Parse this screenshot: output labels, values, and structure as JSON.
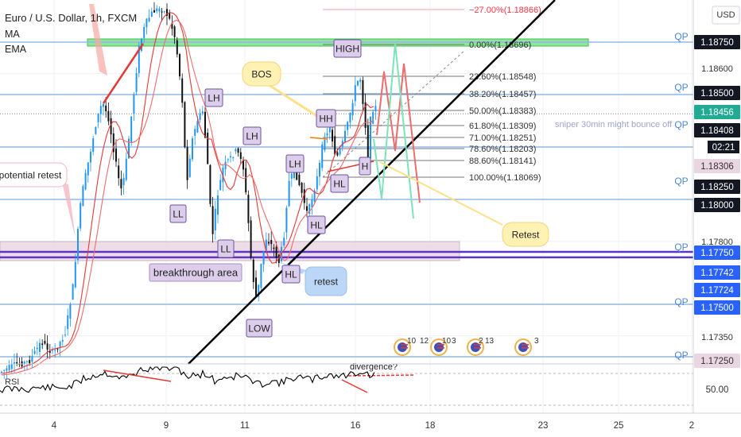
{
  "header": {
    "title": "Euro / U.S. Dollar, 1h, FXCM",
    "indicators": [
      "MA",
      "EMA"
    ],
    "currency": "USD",
    "countdown": "02:21"
  },
  "colors": {
    "up": "#2196f3",
    "down": "#111111",
    "trendline": "#000000",
    "fib": "#555555",
    "level_blue": "#90b8e6",
    "level_purple": "#5b35c8",
    "zone_green": "#7ee08a",
    "zone_pink": "#e8d2de",
    "badge_dark": "#131722",
    "badge_green": "#22ab94",
    "badge_blue": "#2962ff",
    "badge_pink": "#ead6e1"
  },
  "chart_data": {
    "type": "candlestick",
    "symbol": "EURUSD",
    "timeframe": "1h",
    "ylim": [
      1.1718,
      1.19
    ],
    "x_ticks": [
      "4",
      "9",
      "11",
      "16",
      "18",
      "23",
      "25",
      "2"
    ],
    "y_ticks": [
      "1.18600",
      "1.18000",
      "1.17800",
      "1.17350"
    ],
    "price_badges": [
      {
        "value": "1.18750",
        "style": "dark",
        "qp": true
      },
      {
        "value": "1.18500",
        "style": "dark",
        "qp": true
      },
      {
        "value": "1.18456",
        "style": "green",
        "qp": false
      },
      {
        "value": "1.18408",
        "style": "dark",
        "qp": true
      },
      {
        "value": "1.18306",
        "style": "pink",
        "qp": false
      },
      {
        "value": "1.18250",
        "style": "dark",
        "qp": true
      },
      {
        "value": "1.18000",
        "style": "dark",
        "qp": false
      },
      {
        "value": "1.17750",
        "style": "blue",
        "qp": true
      },
      {
        "value": "1.17742",
        "style": "blue",
        "qp": false
      },
      {
        "value": "1.17724",
        "style": "blue",
        "qp": false
      },
      {
        "value": "1.17500",
        "style": "blue",
        "qp": true
      },
      {
        "value": "1.17250",
        "style": "pink",
        "qp": true
      }
    ],
    "qp_label": "QP",
    "fib_levels": [
      {
        "ratio": "-27.00%",
        "price": 1.18866,
        "label": "−27.00%(1.18866)",
        "color": "#f23645"
      },
      {
        "ratio": "0.00%",
        "price": 1.18696,
        "label": "0.00%(1.18696)",
        "color": "#333333"
      },
      {
        "ratio": "23.60%",
        "price": 1.18548,
        "label": "23.60%(1.18548)",
        "color": "#333333"
      },
      {
        "ratio": "38.20%",
        "price": 1.18457,
        "label": "38.20%(1.18457)",
        "color": "#333333"
      },
      {
        "ratio": "50.00%",
        "price": 1.18383,
        "label": "50.00%(1.18383)",
        "color": "#333333"
      },
      {
        "ratio": "61.80%",
        "price": 1.18309,
        "label": "61.80%(1.18309)",
        "color": "#333333"
      },
      {
        "ratio": "71.00%",
        "price": 1.18251,
        "label": "71.00%(1.18251)",
        "color": "#333333"
      },
      {
        "ratio": "78.60%",
        "price": 1.18203,
        "label": "78.60%(1.18203)",
        "color": "#333333"
      },
      {
        "ratio": "88.60%",
        "price": 1.18141,
        "label": "88.60%(1.18141)",
        "color": "#333333"
      },
      {
        "ratio": "100.00%",
        "price": 1.18069,
        "label": "100.00%(1.18069)",
        "color": "#333333"
      }
    ],
    "horizontal_levels": [
      {
        "price": 1.1875,
        "color": "#90b8e6"
      },
      {
        "price": 1.185,
        "color": "#90b8e6"
      },
      {
        "price": 1.1825,
        "color": "#90b8e6"
      },
      {
        "price": 1.18,
        "color": "#90b8e6"
      },
      {
        "price": 1.1775,
        "color": "#5b35c8"
      },
      {
        "price": 1.17724,
        "color": "#5b35c8"
      },
      {
        "price": 1.175,
        "color": "#90b8e6"
      },
      {
        "price": 1.1725,
        "color": "#90b8e6"
      }
    ],
    "annotations": {
      "bos": "BOS",
      "retest_right": "Retest",
      "retest_left": "retest",
      "potential_retest": "potential retest",
      "breakthrough_area": "breakthrough area",
      "sniper_note": "sniper 30min might bounce off",
      "structure_labels": [
        "HIGH",
        "LH",
        "LH",
        "LL",
        "LL",
        "LH",
        "HH",
        "HL",
        "HL",
        "HL",
        "LOW",
        "H"
      ],
      "divergence": "divergence?"
    },
    "events": [
      "10",
      "12",
      "10",
      "3",
      "2",
      "13",
      "3"
    ],
    "rsi": {
      "label": "RSI",
      "level_text": "50.00"
    }
  }
}
